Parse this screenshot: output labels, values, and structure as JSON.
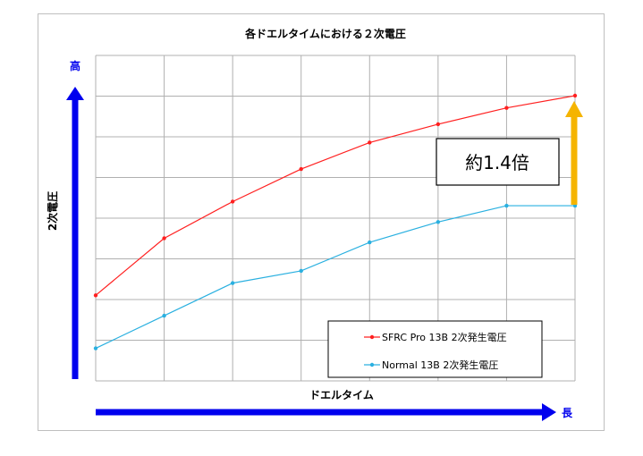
{
  "chart_data": {
    "type": "line",
    "title": "各ドエルタイムにおける２次電圧",
    "xlabel": "ドエルタイム",
    "ylabel": "2次電圧",
    "y_high_label": "高",
    "x_long_label": "長",
    "x": [
      0,
      1,
      2,
      3,
      4,
      5,
      6,
      7
    ],
    "ylim": [
      0,
      7
    ],
    "xlim": [
      0,
      7
    ],
    "grid": true,
    "legend_position": "bottom-right",
    "series": [
      {
        "name": "SFRC Pro 13B 2次発生電圧",
        "color": "#ff2020",
        "values": [
          2.1,
          3.5,
          4.4,
          5.2,
          5.85,
          6.3,
          6.7,
          7.0
        ]
      },
      {
        "name": "Normal 13B 2次発生電圧",
        "color": "#2ab0e0",
        "values": [
          0.8,
          1.6,
          2.4,
          2.7,
          3.4,
          3.9,
          4.3,
          4.3
        ]
      }
    ],
    "annotation": {
      "text": "約1.4倍",
      "arrow_color": "#f5b400"
    }
  },
  "colors": {
    "axis_arrow": "#0000ee",
    "grid": "#b0b0b0"
  }
}
